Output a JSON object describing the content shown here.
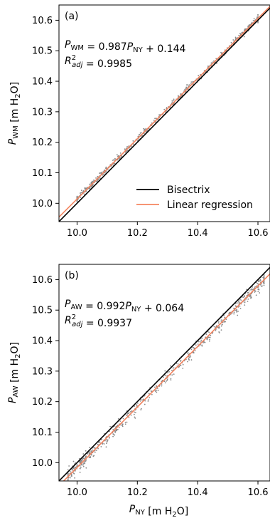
{
  "colors": {
    "bisectrix": "#000000",
    "regression": "#f4845f",
    "scatter": "#8a8a8a",
    "axes": "#000000",
    "background": "#ffffff"
  },
  "legend": {
    "placement": "bottom-right of panel (a)",
    "entries": [
      {
        "label": "Bisectrix",
        "color": "#000000"
      },
      {
        "label": "Linear regression",
        "color": "#f4845f"
      }
    ]
  },
  "chart_data": [
    {
      "type": "scatter",
      "panel_label": "(a)",
      "xlabel": "",
      "ylabel": "P_WM [m H2O]",
      "xlim": [
        9.94,
        10.64
      ],
      "ylim": [
        9.94,
        10.65
      ],
      "xticks": [
        10.0,
        10.2,
        10.4,
        10.6
      ],
      "yticks": [
        10.0,
        10.1,
        10.2,
        10.3,
        10.4,
        10.5,
        10.6
      ],
      "xtick_labels": [
        "10.0",
        "10.2",
        "10.4",
        "10.6"
      ],
      "ytick_labels": [
        "10.0",
        "10.1",
        "10.2",
        "10.3",
        "10.4",
        "10.5",
        "10.6"
      ],
      "show_xtick_labels": true,
      "grid": false,
      "equation": {
        "slope": 0.987,
        "intercept": 0.144,
        "r2_adj": 0.9985
      },
      "equation_text": "P_WM = 0.987P_NY + 0.144",
      "r2_text": "R²_adj = 0.9985",
      "scatter_x_range": [
        10.0,
        10.6
      ],
      "scatter_spread": 0.005,
      "series": [
        {
          "name": "Bisectrix",
          "slope": 1.0,
          "intercept": 0.0
        },
        {
          "name": "Linear regression",
          "slope": 0.987,
          "intercept": 0.144
        }
      ]
    },
    {
      "type": "scatter",
      "panel_label": "(b)",
      "xlabel": "P_NY [m H2O]",
      "ylabel": "P_AW [m H2O]",
      "xlim": [
        9.94,
        10.64
      ],
      "ylim": [
        9.94,
        10.65
      ],
      "xticks": [
        10.0,
        10.2,
        10.4,
        10.6
      ],
      "yticks": [
        10.0,
        10.1,
        10.2,
        10.3,
        10.4,
        10.5,
        10.6
      ],
      "xtick_labels": [
        "10.0",
        "10.2",
        "10.4",
        "10.6"
      ],
      "ytick_labels": [
        "10.0",
        "10.1",
        "10.2",
        "10.3",
        "10.4",
        "10.5",
        "10.6"
      ],
      "show_xtick_labels": true,
      "grid": false,
      "equation": {
        "slope": 0.992,
        "intercept": 0.064,
        "r2_adj": 0.9937
      },
      "equation_text": "P_AW = 0.992P_NY + 0.064",
      "r2_text": "R²_adj = 0.9937",
      "scatter_x_range": [
        9.97,
        10.62
      ],
      "scatter_spread": 0.011,
      "series": [
        {
          "name": "Bisectrix",
          "slope": 1.0,
          "intercept": 0.0
        },
        {
          "name": "Linear regression",
          "slope": 0.992,
          "intercept": 0.064
        }
      ]
    }
  ]
}
